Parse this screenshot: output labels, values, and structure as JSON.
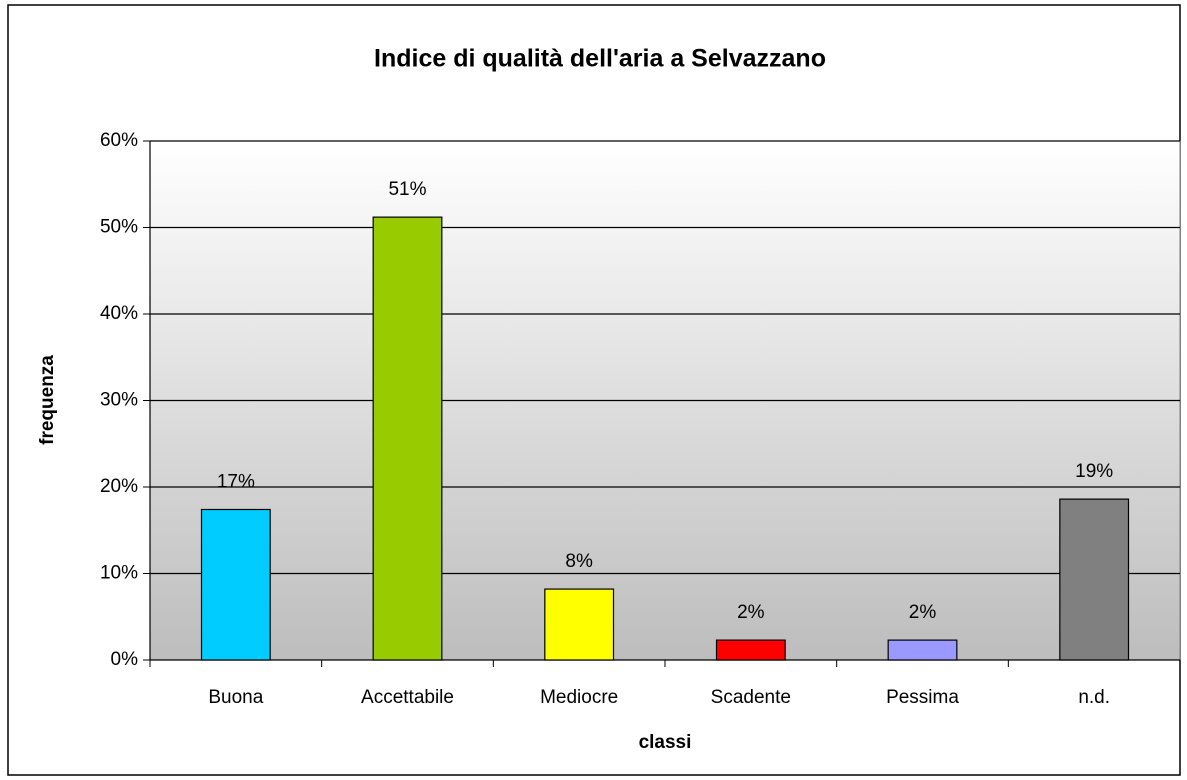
{
  "chart_data": {
    "type": "bar",
    "title": "Indice di qualità dell'aria a Selvazzano",
    "x_label": "classi",
    "y_label": "frequenza",
    "categories": [
      "Buona",
      "Accettabile",
      "Mediocre",
      "Scadente",
      "Pessima",
      "n.d."
    ],
    "values": [
      17.4,
      51.2,
      8.2,
      2.3,
      2.3,
      18.6
    ],
    "value_labels": [
      "17%",
      "51%",
      "8%",
      "2%",
      "2%",
      "19%"
    ],
    "colors": [
      "#00ccff",
      "#99cc00",
      "#ffff00",
      "#ff0000",
      "#9999ff",
      "#808080"
    ],
    "ylim": [
      0,
      60
    ],
    "yticks": [
      {
        "value": 0,
        "label": "0%"
      },
      {
        "value": 10,
        "label": "10%"
      },
      {
        "value": 20,
        "label": "20%"
      },
      {
        "value": 30,
        "label": "30%"
      },
      {
        "value": 40,
        "label": "40%"
      },
      {
        "value": 50,
        "label": "50%"
      },
      {
        "value": 60,
        "label": "60%"
      }
    ],
    "grid": true
  }
}
